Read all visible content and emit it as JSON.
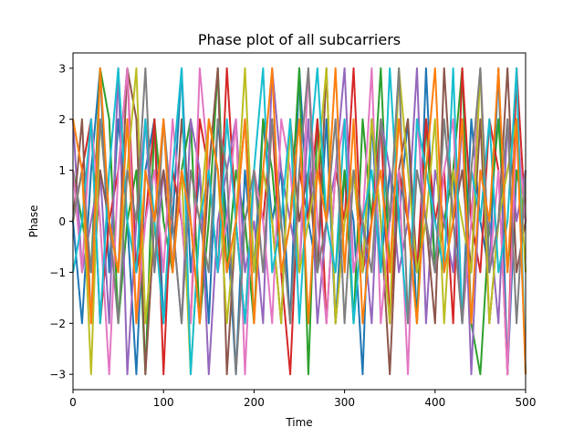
{
  "chart_data": {
    "type": "line",
    "title": "Phase plot of all subcarriers",
    "xlabel": "Time",
    "ylabel": "Phase",
    "xlim": [
      0,
      500
    ],
    "ylim": [
      -3.3,
      3.3
    ],
    "xticks": [
      0,
      100,
      200,
      300,
      400,
      500
    ],
    "yticks": [
      -3,
      -2,
      -1,
      0,
      1,
      2,
      3
    ],
    "grid": false,
    "legend": "none",
    "x": [
      0,
      10,
      20,
      30,
      40,
      50,
      60,
      70,
      80,
      90,
      100,
      110,
      120,
      130,
      140,
      150,
      160,
      170,
      180,
      190,
      200,
      210,
      220,
      230,
      240,
      250,
      260,
      270,
      280,
      290,
      300,
      310,
      320,
      330,
      340,
      350,
      360,
      370,
      380,
      390,
      400,
      410,
      420,
      430,
      440,
      450,
      460,
      470,
      480,
      490,
      500
    ],
    "series": [
      {
        "color": "#1f77b4",
        "values": [
          0,
          -2,
          1,
          3,
          -1,
          2,
          0,
          -3,
          1,
          2,
          -2,
          0,
          3,
          -1,
          1,
          -2,
          2,
          0,
          -3,
          1,
          -1,
          2,
          0,
          1,
          -2,
          3,
          0,
          -1,
          2,
          -2,
          1,
          0,
          -3,
          2,
          -1,
          1,
          0,
          2,
          -2,
          3,
          -1,
          0,
          1,
          -2,
          2,
          0,
          -1,
          3,
          -3,
          1,
          0
        ]
      },
      {
        "color": "#2ca02c",
        "values": [
          1,
          0,
          -1,
          3,
          2,
          -2,
          0,
          1,
          -3,
          2,
          0,
          -1,
          1,
          2,
          -2,
          0,
          3,
          -1,
          1,
          0,
          -2,
          2,
          1,
          -1,
          0,
          3,
          -3,
          2,
          0,
          -1,
          1,
          -2,
          2,
          0,
          3,
          -1,
          1,
          0,
          -2,
          2,
          -1,
          0,
          1,
          3,
          -2,
          -3,
          0,
          2,
          -1,
          1,
          0
        ]
      },
      {
        "color": "#d62728",
        "values": [
          0,
          1,
          2,
          -2,
          0,
          1,
          3,
          -1,
          0,
          2,
          -3,
          1,
          0,
          -2,
          2,
          1,
          -1,
          3,
          0,
          -2,
          1,
          0,
          2,
          -1,
          -3,
          1,
          0,
          2,
          -2,
          1,
          0,
          3,
          -1,
          0,
          2,
          -2,
          1,
          0,
          -1,
          2,
          0,
          1,
          -2,
          3,
          0,
          -1,
          2,
          1,
          -3,
          3,
          0
        ]
      },
      {
        "color": "#9467bd",
        "values": [
          2,
          -1,
          0,
          1,
          -2,
          3,
          -3,
          0,
          2,
          -1,
          1,
          0,
          -2,
          2,
          1,
          -3,
          0,
          1,
          2,
          -1,
          0,
          -2,
          3,
          1,
          0,
          -1,
          2,
          -2,
          0,
          1,
          3,
          -1,
          0,
          -2,
          2,
          1,
          -1,
          0,
          3,
          -2,
          1,
          0,
          -1,
          2,
          -3,
          1,
          0,
          -2,
          2,
          0,
          1
        ]
      },
      {
        "color": "#8c564b",
        "values": [
          0,
          2,
          -2,
          1,
          0,
          -1,
          3,
          2,
          -3,
          0,
          1,
          -1,
          2,
          0,
          -2,
          1,
          3,
          -3,
          0,
          2,
          -1,
          1,
          0,
          -2,
          2,
          0,
          1,
          -1,
          3,
          -2,
          0,
          1,
          -1,
          2,
          0,
          -3,
          1,
          2,
          -1,
          0,
          -2,
          3,
          0,
          1,
          -1,
          2,
          -2,
          0,
          3,
          -1,
          0
        ]
      },
      {
        "color": "#e377c2",
        "values": [
          1,
          -1,
          2,
          0,
          -3,
          1,
          3,
          -2,
          0,
          1,
          -1,
          2,
          0,
          -2,
          3,
          1,
          -1,
          0,
          2,
          -3,
          1,
          0,
          -2,
          2,
          1,
          -1,
          3,
          0,
          -2,
          1,
          2,
          -1,
          0,
          3,
          -2,
          0,
          1,
          -3,
          2,
          0,
          -1,
          1,
          2,
          -2,
          0,
          3,
          -1,
          1,
          -3,
          2,
          0
        ]
      },
      {
        "color": "#bcbd22",
        "values": [
          0,
          1,
          -3,
          2,
          0,
          -1,
          1,
          3,
          -2,
          0,
          2,
          -1,
          1,
          -3,
          0,
          2,
          1,
          -2,
          0,
          3,
          -1,
          1,
          0,
          -2,
          2,
          -1,
          0,
          1,
          3,
          -2,
          0,
          1,
          -1,
          2,
          0,
          -2,
          3,
          1,
          -1,
          0,
          2,
          -2,
          1,
          0,
          -1,
          3,
          -2,
          0,
          1,
          2,
          -1
        ]
      },
      {
        "color": "#17becf",
        "values": [
          -1,
          0,
          2,
          -2,
          1,
          3,
          0,
          -1,
          2,
          0,
          -2,
          1,
          3,
          -3,
          0,
          1,
          -1,
          2,
          0,
          -2,
          1,
          3,
          -1,
          0,
          2,
          -2,
          1,
          3,
          0,
          -1,
          2,
          -2,
          0,
          1,
          -1,
          3,
          0,
          -2,
          2,
          1,
          0,
          -1,
          3,
          -2,
          1,
          0,
          2,
          -1,
          0,
          3,
          -3
        ]
      },
      {
        "color": "#7f7f7f",
        "values": [
          0,
          1,
          -1,
          2,
          0,
          -2,
          1,
          0,
          3,
          -1,
          2,
          0,
          -2,
          1,
          0,
          -1,
          2,
          1,
          -3,
          0,
          1,
          -1,
          2,
          0,
          -2,
          1,
          3,
          -1,
          0,
          2,
          -2,
          1,
          0,
          -1,
          2,
          0,
          3,
          -2,
          1,
          0,
          -1,
          2,
          0,
          -2,
          1,
          3,
          -1,
          0,
          2,
          -2,
          1
        ]
      },
      {
        "color": "#ff7f0e",
        "values": [
          2,
          1,
          -2,
          3,
          0,
          -1,
          2,
          -2,
          1,
          0,
          2,
          -1,
          1,
          0,
          -2,
          2,
          1,
          -1,
          0,
          2,
          -2,
          1,
          3,
          -1,
          0,
          2,
          -2,
          1,
          0,
          3,
          -1,
          2,
          -2,
          0,
          1,
          -1,
          2,
          0,
          -2,
          1,
          3,
          -1,
          0,
          2,
          -2,
          1,
          0,
          3,
          -1,
          2,
          -3
        ]
      }
    ]
  }
}
